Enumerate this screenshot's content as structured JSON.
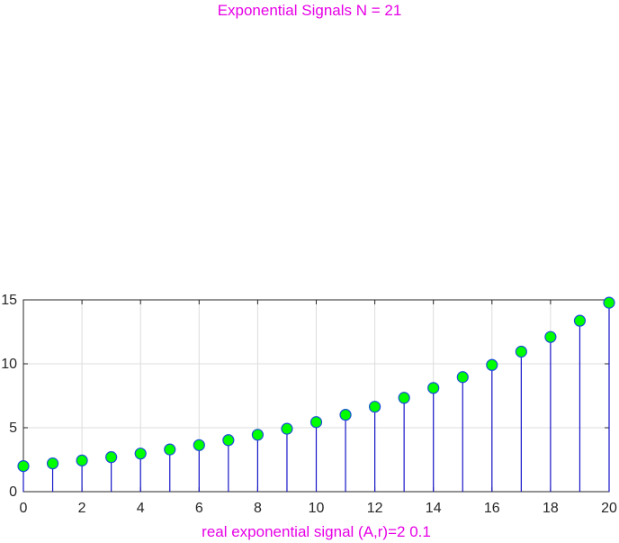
{
  "title": "Exponential Signals N = 21",
  "title_color": "#e600e6",
  "chart_data": {
    "type": "stem",
    "title": "",
    "xlabel": "real exponential signal (A,r)=2 0.1",
    "ylabel": "",
    "x": [
      0,
      1,
      2,
      3,
      4,
      5,
      6,
      7,
      8,
      9,
      10,
      11,
      12,
      13,
      14,
      15,
      16,
      17,
      18,
      19,
      20
    ],
    "values": [
      2.0,
      2.21,
      2.44,
      2.7,
      2.98,
      3.3,
      3.64,
      4.03,
      4.45,
      4.92,
      5.44,
      6.01,
      6.64,
      7.34,
      8.11,
      8.96,
      9.91,
      10.95,
      12.1,
      13.37,
      14.78
    ],
    "xlim": [
      0,
      20
    ],
    "ylim": [
      0,
      15
    ],
    "xticks": [
      0,
      2,
      4,
      6,
      8,
      10,
      12,
      14,
      16,
      18,
      20
    ],
    "yticks": [
      0,
      5,
      10,
      15
    ],
    "xtick_labels": [
      "0",
      "2",
      "4",
      "6",
      "8",
      "10",
      "12",
      "14",
      "16",
      "18",
      "20"
    ],
    "ytick_labels": [
      "0",
      "5",
      "10",
      "15"
    ],
    "grid": true,
    "colors": {
      "stem": "#1515c8",
      "marker_fill": "#00ff00",
      "marker_edge": "#1a4fd6",
      "label": "#e600e6",
      "grid": "#dcdcdc",
      "axis": "#262626"
    }
  }
}
